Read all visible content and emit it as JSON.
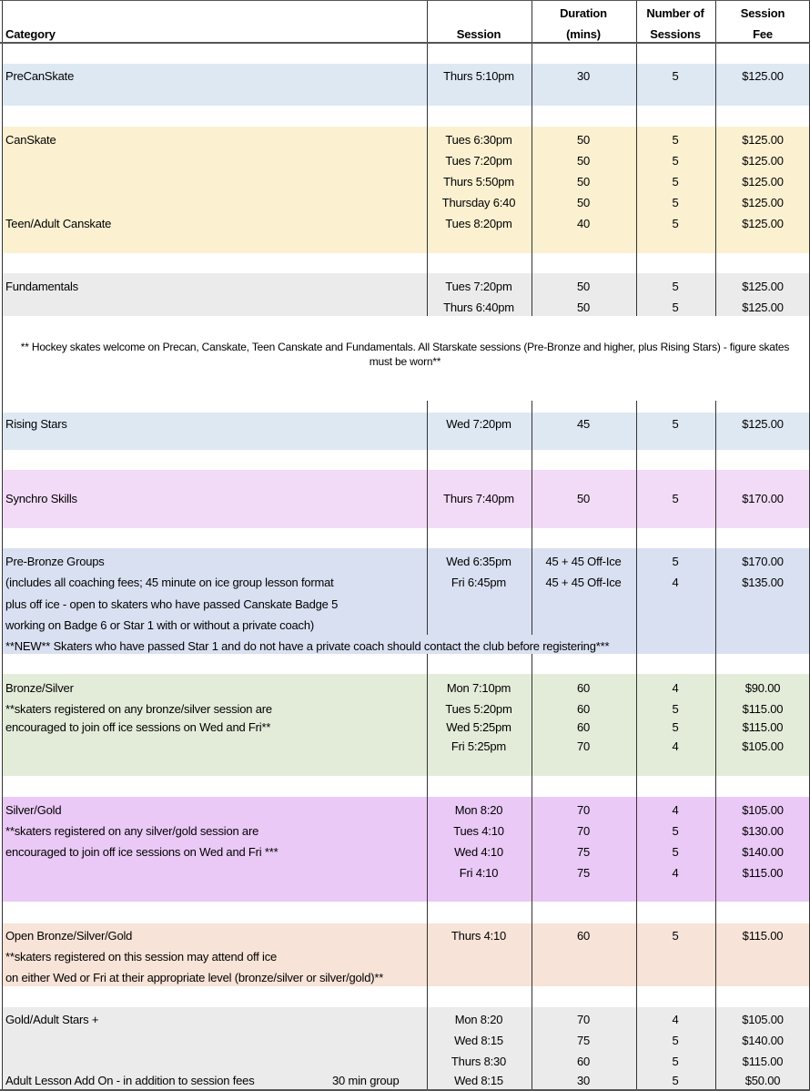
{
  "header": {
    "category": "Category",
    "session": "Session",
    "duration": [
      "Duration",
      "(mins)"
    ],
    "number": [
      "Number of",
      "Sessions"
    ],
    "fee": [
      "Session",
      "Fee"
    ]
  },
  "note": "** Hockey skates welcome on Precan, Canskate, Teen Canskate and Fundamentals. All Starskate sessions (Pre-Bronze and higher, plus Rising Stars) - figure skates must be worn**",
  "sections": [
    {
      "color": "#dee8f3",
      "rows": [
        {
          "category": "PreCanSkate",
          "session": "Thurs 5:10pm",
          "duration": "30",
          "sessions": "5",
          "fee": "$125.00"
        }
      ]
    },
    {
      "color": "#fbf0d0",
      "rows": [
        {
          "category": "CanSkate",
          "session": "Tues 6:30pm",
          "duration": "50",
          "sessions": "5",
          "fee": "$125.00"
        },
        {
          "category": "",
          "session": "Tues 7:20pm",
          "duration": "50",
          "sessions": "5",
          "fee": "$125.00"
        },
        {
          "category": "",
          "session": "Thurs 5:50pm",
          "duration": "50",
          "sessions": "5",
          "fee": "$125.00"
        },
        {
          "category": "",
          "session": "Thursday 6:40",
          "duration": "50",
          "sessions": "5",
          "fee": "$125.00"
        },
        {
          "category": "Teen/Adult Canskate",
          "session": "Tues 8:20pm",
          "duration": "40",
          "sessions": "5",
          "fee": "$125.00"
        }
      ]
    },
    {
      "color": "#ebebeb",
      "rows": [
        {
          "category": "Fundamentals",
          "session": "Tues 7:20pm",
          "duration": "50",
          "sessions": "5",
          "fee": "$125.00"
        },
        {
          "category": "",
          "session": "Thurs 6:40pm",
          "duration": "50",
          "sessions": "5",
          "fee": "$125.00"
        }
      ]
    },
    {
      "color": "#dee8f3",
      "rows": [
        {
          "category": "Rising Stars",
          "session": "Wed 7:20pm",
          "duration": "45",
          "sessions": "5",
          "fee": "$125.00"
        }
      ]
    },
    {
      "color": "#f2dbf7",
      "rows": [
        {
          "category": "Synchro Skills",
          "session": "Thurs 7:40pm",
          "duration": "50",
          "sessions": "5",
          "fee": "$170.00"
        }
      ]
    },
    {
      "color": "#d9e0f1",
      "rows": [
        {
          "category": "Pre-Bronze Groups",
          "session": "Wed 6:35pm",
          "duration": "45 + 45 Off-Ice",
          "sessions": "5",
          "fee": "$170.00"
        },
        {
          "category": "(includes all coaching fees;  45 minute on ice group lesson format",
          "session": "Fri 6:45pm",
          "duration": "45 + 45 Off-Ice",
          "sessions": "4",
          "fee": "$135.00"
        },
        {
          "category": "plus off ice - open to skaters who have passed Canskate Badge 5",
          "session": "",
          "duration": "",
          "sessions": "",
          "fee": ""
        },
        {
          "category": "working on Badge 6 or Star 1 with or without a private coach)",
          "session": "",
          "duration": "",
          "sessions": "",
          "fee": ""
        },
        {
          "category": "**NEW** Skaters who have passed Star 1 and do not have a private coach should contact the club before registering***",
          "session": "",
          "duration": "",
          "sessions": "",
          "fee": ""
        }
      ]
    },
    {
      "color": "#e3ecd9",
      "rows": [
        {
          "category": "Bronze/Silver",
          "session": "Mon 7:10pm",
          "duration": "60",
          "sessions": "4",
          "fee": "$90.00"
        },
        {
          "category": "**skaters registered on any bronze/silver session are",
          "session": "Tues 5:20pm",
          "duration": "60",
          "sessions": "5",
          "fee": "$115.00"
        },
        {
          "category": "encouraged to join off ice sessions on Wed and Fri**",
          "session": "Wed 5:25pm",
          "duration": "60",
          "sessions": "5",
          "fee": "$115.00"
        },
        {
          "category": "",
          "session": "Fri 5:25pm",
          "duration": "70",
          "sessions": "4",
          "fee": "$105.00"
        }
      ]
    },
    {
      "color": "#eac9f6",
      "rows": [
        {
          "category": "Silver/Gold",
          "session": "Mon 8:20",
          "duration": "70",
          "sessions": "4",
          "fee": "$105.00"
        },
        {
          "category": "**skaters registered on any silver/gold session are",
          "session": "Tues 4:10",
          "duration": "70",
          "sessions": "5",
          "fee": "$130.00"
        },
        {
          "category": "encouraged to join off ice sessions on Wed and Fri ***",
          "session": "Wed 4:10",
          "duration": "75",
          "sessions": "5",
          "fee": "$140.00"
        },
        {
          "category": "",
          "session": "Fri 4:10",
          "duration": "75",
          "sessions": "4",
          "fee": "$115.00"
        }
      ]
    },
    {
      "color": "#f7e3d7",
      "rows": [
        {
          "category": "Open Bronze/Silver/Gold",
          "session": "Thurs 4:10",
          "duration": "60",
          "sessions": "5",
          "fee": "$115.00"
        },
        {
          "category": "**skaters registered on this session may attend off ice",
          "session": "",
          "duration": "",
          "sessions": "",
          "fee": ""
        },
        {
          "category": "on either Wed or Fri at their appropriate level (bronze/silver or silver/gold)**",
          "session": "",
          "duration": "",
          "sessions": "",
          "fee": ""
        }
      ]
    },
    {
      "color": "#ebebeb",
      "rows": [
        {
          "category": "Gold/Adult  Stars +",
          "session": "Mon 8:20",
          "duration": "70",
          "sessions": "4",
          "fee": "$105.00"
        },
        {
          "category": "",
          "session": "Wed 8:15",
          "duration": "75",
          "sessions": "5",
          "fee": "$140.00"
        },
        {
          "category": "",
          "session": "Thurs 8:30",
          "duration": "60",
          "sessions": "5",
          "fee": "$115.00"
        },
        {
          "category": "Adult Lesson Add On - in addition to session fees",
          "extra": "30 min group",
          "session": "Wed 8:15",
          "duration": "30",
          "sessions": "5",
          "fee": "$50.00"
        }
      ]
    }
  ]
}
